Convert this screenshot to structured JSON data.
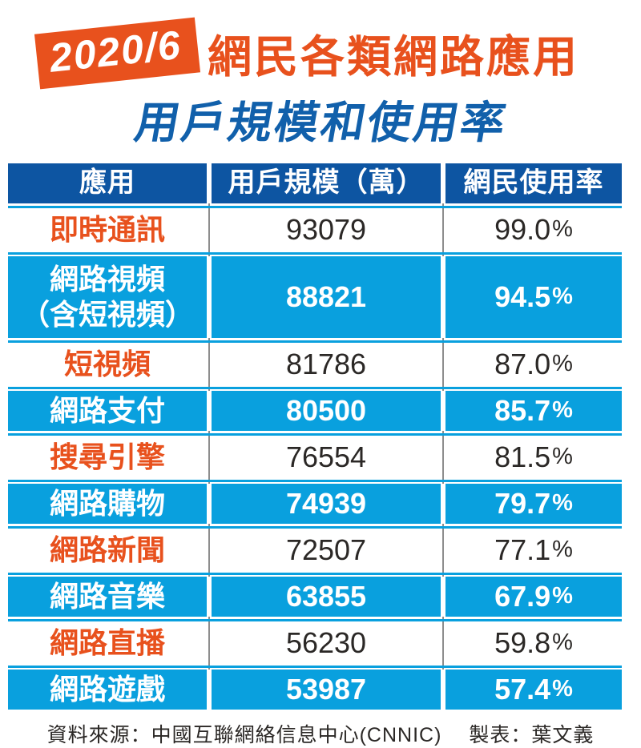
{
  "title": {
    "badge": "2020/6",
    "line1": "網民各類網路應用",
    "line2": "用戶規模和使用率"
  },
  "table": {
    "headers": [
      "應用",
      "用戶規模（萬）",
      "網民使用率"
    ],
    "rows": [
      {
        "app": "即時通訊",
        "users": "93079",
        "usage_value": "99.0",
        "usage_unit": "%"
      },
      {
        "app": "網路視頻\n（含短視頻）",
        "users": "88821",
        "usage_value": "94.5",
        "usage_unit": "%"
      },
      {
        "app": "短視頻",
        "users": "81786",
        "usage_value": "87.0",
        "usage_unit": "%"
      },
      {
        "app": "網路支付",
        "users": "80500",
        "usage_value": "85.7",
        "usage_unit": "%"
      },
      {
        "app": "搜尋引擎",
        "users": "76554",
        "usage_value": "81.5",
        "usage_unit": "%"
      },
      {
        "app": "網路購物",
        "users": "74939",
        "usage_value": "79.7",
        "usage_unit": "%"
      },
      {
        "app": "網路新聞",
        "users": "72507",
        "usage_value": "77.1",
        "usage_unit": "%"
      },
      {
        "app": "網路音樂",
        "users": "63855",
        "usage_value": "67.9",
        "usage_unit": "%"
      },
      {
        "app": "網路直播",
        "users": "56230",
        "usage_value": "59.8",
        "usage_unit": "%"
      },
      {
        "app": "網路遊戲",
        "users": "53987",
        "usage_value": "57.4",
        "usage_unit": "%"
      }
    ]
  },
  "footer": {
    "source": "資料來源：中國互聯網絡信息中心(CNNIC)",
    "credit": "製表：葉文義"
  },
  "colors": {
    "accent_orange": "#e8511d",
    "header_blue": "#0d55a2",
    "row_blue": "#09a0de",
    "title_blue": "#1160ab",
    "text_dark": "#2b2826",
    "gridline_gray": "#8d8d8d"
  },
  "chart_data": {
    "type": "table",
    "title": "2020/6 網民各類網路應用用戶規模和使用率",
    "columns": [
      "應用",
      "用戶規模（萬）",
      "網民使用率"
    ],
    "rows": [
      [
        "即時通訊",
        93079,
        "99.0%"
      ],
      [
        "網路視頻（含短視頻）",
        88821,
        "94.5%"
      ],
      [
        "短視頻",
        81786,
        "87.0%"
      ],
      [
        "網路支付",
        80500,
        "85.7%"
      ],
      [
        "搜尋引擎",
        76554,
        "81.5%"
      ],
      [
        "網路購物",
        74939,
        "79.7%"
      ],
      [
        "網路新聞",
        72507,
        "77.1%"
      ],
      [
        "網路音樂",
        63855,
        "67.9%"
      ],
      [
        "網路直播",
        56230,
        "59.8%"
      ],
      [
        "網路遊戲",
        53987,
        "57.4%"
      ]
    ],
    "source": "中國互聯網絡信息中心(CNNIC)",
    "credit": "葉文義"
  }
}
